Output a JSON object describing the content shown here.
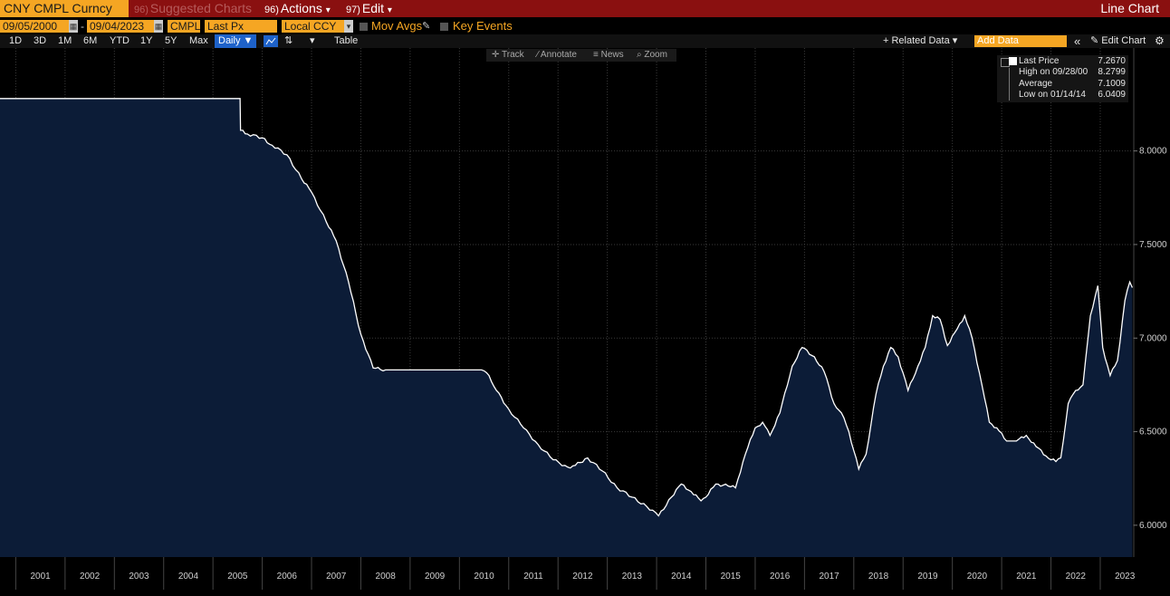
{
  "topbar": {
    "ticker": "CNY CMPL Curncy",
    "suggested": {
      "num": "96)",
      "label": "Suggested Charts"
    },
    "actions": {
      "num": "96)",
      "label": "Actions",
      "arrow": "▾"
    },
    "edit": {
      "num": "97)",
      "label": "Edit",
      "arrow": "▾"
    },
    "chart_type": "Line Chart"
  },
  "controls": {
    "start_date": "09/05/2000",
    "end_date": "09/04/2023",
    "date_sep": "-",
    "source": "CMPL",
    "field": "Last Px",
    "currency": "Local CCY",
    "mov_avgs": "Mov Avgs",
    "key_events": "Key Events"
  },
  "ranges": [
    "1D",
    "3D",
    "1M",
    "6M",
    "YTD",
    "1Y",
    "5Y",
    "Max"
  ],
  "frequency": "Daily ▼",
  "table_label": "Table",
  "related_data": "+ Related Data ▾",
  "add_data_placeholder": "Add Data",
  "collapse": "«",
  "edit_chart": "✎ Edit Chart",
  "settings_icon": "⚙",
  "tools": {
    "track": "Track",
    "annotate": "Annotate",
    "news": "News",
    "zoom": "Zoom"
  },
  "legend": {
    "last_price": {
      "label": "Last Price",
      "value": "7.2670"
    },
    "high": {
      "label": "High on 09/28/00",
      "value": "8.2799"
    },
    "average": {
      "label": "Average",
      "value": "7.1009"
    },
    "low": {
      "label": "Low on 01/14/14",
      "value": "6.0409"
    }
  },
  "colors": {
    "topbar": "#8a1010",
    "accent": "#f5a623",
    "area_fill": "#0c1c37",
    "line": "#ffffff",
    "selected": "#1e62c9"
  },
  "chart_data": {
    "type": "area",
    "x_unit": "year",
    "xlim": [
      2000.68,
      2023.68
    ],
    "ylim": [
      5.83,
      8.55
    ],
    "x_ticks": [
      "2001",
      "2002",
      "2003",
      "2004",
      "2005",
      "2006",
      "2007",
      "2008",
      "2009",
      "2010",
      "2011",
      "2012",
      "2013",
      "2014",
      "2015",
      "2016",
      "2017",
      "2018",
      "2019",
      "2020",
      "2021",
      "2022",
      "2023"
    ],
    "y_ticks": [
      "6.0000",
      "6.5000",
      "7.0000",
      "7.5000",
      "8.0000"
    ],
    "y_tick_values": [
      6.0,
      6.5,
      7.0,
      7.5,
      8.0
    ],
    "grid": true,
    "series": [
      {
        "x": [
          2000.68,
          2005.55,
          2005.56,
          2005.7,
          2006.0,
          2006.2,
          2006.5,
          2006.8,
          2007.0,
          2007.3,
          2007.5,
          2007.75,
          2008.0,
          2008.25,
          2008.5,
          2008.75,
          2009.0,
          2009.5,
          2010.0,
          2010.45,
          2010.6,
          2010.75,
          2011.0,
          2011.3,
          2011.6,
          2011.9,
          2012.2,
          2012.35,
          2012.6,
          2012.9,
          2013.2,
          2013.5,
          2013.8,
          2014.04,
          2014.3,
          2014.5,
          2014.7,
          2014.9,
          2015.0,
          2015.2,
          2015.45,
          2015.6,
          2015.8,
          2016.0,
          2016.15,
          2016.3,
          2016.5,
          2016.75,
          2016.95,
          2017.2,
          2017.4,
          2017.6,
          2017.75,
          2017.9,
          2018.1,
          2018.25,
          2018.45,
          2018.6,
          2018.75,
          2018.9,
          2019.1,
          2019.3,
          2019.45,
          2019.6,
          2019.75,
          2019.9,
          2020.1,
          2020.25,
          2020.4,
          2020.6,
          2020.75,
          2020.9,
          2021.1,
          2021.3,
          2021.5,
          2021.7,
          2021.9,
          2022.1,
          2022.2,
          2022.35,
          2022.5,
          2022.65,
          2022.8,
          2022.95,
          2023.05,
          2023.2,
          2023.35,
          2023.5,
          2023.6,
          2023.65
        ],
        "y": [
          8.28,
          8.28,
          8.11,
          8.09,
          8.07,
          8.03,
          7.98,
          7.85,
          7.78,
          7.62,
          7.52,
          7.3,
          7.02,
          6.84,
          6.83,
          6.83,
          6.83,
          6.83,
          6.83,
          6.83,
          6.8,
          6.72,
          6.62,
          6.52,
          6.43,
          6.35,
          6.31,
          6.32,
          6.36,
          6.29,
          6.2,
          6.15,
          6.1,
          6.05,
          6.15,
          6.22,
          6.18,
          6.13,
          6.15,
          6.22,
          6.21,
          6.2,
          6.38,
          6.52,
          6.55,
          6.48,
          6.6,
          6.85,
          6.95,
          6.9,
          6.82,
          6.65,
          6.6,
          6.5,
          6.3,
          6.38,
          6.7,
          6.85,
          6.95,
          6.9,
          6.72,
          6.85,
          6.95,
          7.12,
          7.1,
          6.96,
          7.05,
          7.12,
          7.0,
          6.75,
          6.55,
          6.52,
          6.45,
          6.45,
          6.48,
          6.42,
          6.37,
          6.34,
          6.36,
          6.65,
          6.72,
          6.75,
          7.12,
          7.28,
          6.95,
          6.8,
          6.88,
          7.2,
          7.3,
          7.27
        ]
      }
    ]
  }
}
